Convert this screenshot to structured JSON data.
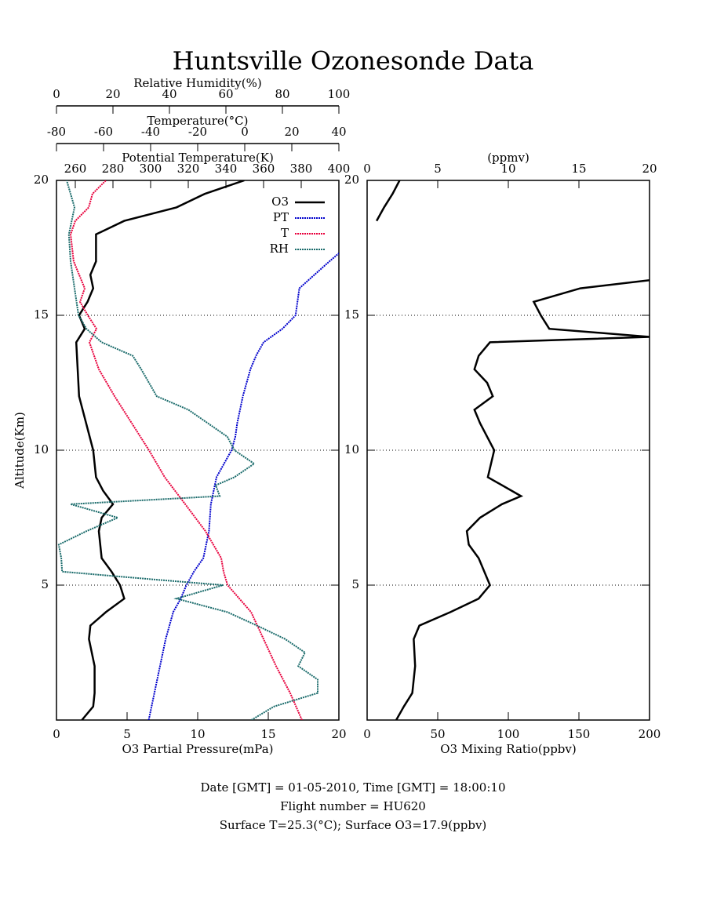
{
  "title": "Huntsville Ozonesonde Data",
  "footer": [
    "Date [GMT] = 01-05-2010,  Time [GMT] = 18:00:10",
    "Flight number = HU620",
    "Surface T=25.3(°C); Surface O3=17.9(ppbv)"
  ],
  "chart_data": [
    {
      "type": "line",
      "ylabel": "Altitude(Km)",
      "ylim": [
        0,
        20
      ],
      "yticks": [
        5,
        10,
        15,
        20
      ],
      "grid": true,
      "legend": "top-right",
      "axes": [
        {
          "label": "O3 Partial Pressure(mPa)",
          "lim": [
            0,
            20
          ],
          "ticks": [
            0,
            5,
            10,
            15,
            20
          ]
        },
        {
          "label": "Potential Temperature(K)",
          "lim": [
            250,
            400
          ],
          "ticks": [
            260,
            280,
            300,
            320,
            340,
            360,
            380,
            400
          ]
        },
        {
          "label": "Temperature(°C)",
          "lim": [
            -80,
            40
          ],
          "ticks": [
            -80,
            -60,
            -40,
            -20,
            0,
            20,
            40
          ]
        },
        {
          "label": "Relative Humidity(%)",
          "lim": [
            0,
            100
          ],
          "ticks": [
            0,
            20,
            40,
            60,
            80,
            100
          ]
        }
      ],
      "series": [
        {
          "name": "O3",
          "color": "#000000",
          "axis": 0,
          "altitude": [
            0,
            0.5,
            1,
            2,
            3,
            3.5,
            4,
            4.5,
            5,
            5.5,
            6,
            7,
            7.5,
            8,
            8.5,
            9,
            10,
            11,
            12,
            13,
            14,
            14.5,
            15,
            15.5,
            16,
            16.5,
            17,
            18,
            18.5,
            19,
            19.5,
            20
          ],
          "values": [
            1.8,
            2.6,
            2.7,
            2.7,
            2.3,
            2.4,
            3.5,
            4.8,
            4.5,
            3.9,
            3.2,
            3.0,
            3.2,
            4.0,
            3.3,
            2.8,
            2.6,
            2.1,
            1.6,
            1.5,
            1.4,
            2.0,
            1.6,
            2.2,
            2.6,
            2.4,
            2.8,
            2.8,
            4.8,
            8.5,
            10.5,
            13.3
          ]
        },
        {
          "name": "PT",
          "color": "#0000cc",
          "axis": 1,
          "altitude": [
            0,
            1,
            2,
            3,
            4,
            4.5,
            5,
            5.5,
            6,
            7,
            8,
            9,
            10,
            10.5,
            11,
            12,
            13,
            13.5,
            14,
            14.5,
            15,
            16,
            16.5,
            17,
            17.3
          ],
          "values": [
            299,
            302,
            305,
            308,
            312,
            316,
            319,
            323,
            328,
            331,
            332,
            335,
            343,
            345,
            346,
            349,
            353,
            356,
            360,
            370,
            377,
            379,
            387,
            395,
            400
          ]
        },
        {
          "name": "T",
          "color": "#e8003c",
          "axis": 2,
          "altitude": [
            0,
            1,
            2,
            3,
            4,
            5,
            5.5,
            6,
            7,
            8,
            9,
            10,
            11,
            12,
            13,
            14,
            14.5,
            15,
            15.5,
            16,
            17,
            18,
            18.5,
            19,
            19.5,
            20
          ],
          "values": [
            24.3,
            19.3,
            13.3,
            8,
            2.7,
            -7.3,
            -9,
            -10,
            -16.7,
            -25.3,
            -34,
            -40.7,
            -48,
            -55.3,
            -62,
            -66,
            -63,
            -66.7,
            -70,
            -68,
            -72.7,
            -74,
            -72,
            -66.3,
            -64.7,
            -59
          ]
        },
        {
          "name": "RH",
          "color": "#1a6b6b",
          "axis": 3,
          "altitude": [
            0,
            0.5,
            1,
            1.5,
            2,
            2.5,
            3,
            3.5,
            4,
            4.5,
            5,
            5.2,
            5.5,
            6,
            6.5,
            7,
            7.5,
            8,
            8.3,
            8.7,
            9,
            9.5,
            10,
            10.5,
            11,
            11.5,
            12,
            13,
            13.5,
            14,
            14.5,
            15,
            16,
            17,
            18,
            19,
            20
          ],
          "values": [
            69,
            77,
            92.5,
            92.5,
            85.6,
            88,
            81,
            71,
            60.5,
            42.5,
            59,
            35.5,
            2,
            1.7,
            0.8,
            10.6,
            21.7,
            5,
            57.8,
            56.4,
            63,
            70,
            63,
            60.5,
            53.6,
            46.7,
            35.5,
            30,
            27,
            16,
            10.6,
            7.8,
            6.4,
            5,
            4.4,
            6.4,
            3.6
          ]
        }
      ]
    },
    {
      "type": "line",
      "ylim": [
        0,
        20
      ],
      "yticks": [
        5,
        10,
        15,
        20
      ],
      "grid": true,
      "axes": [
        {
          "label": "O3 Mixing Ratio(ppbv)",
          "lim": [
            0,
            200
          ],
          "ticks": [
            0,
            50,
            100,
            150,
            200
          ]
        },
        {
          "label": "(ppmv)",
          "lim": [
            0,
            20
          ],
          "ticks": [
            0,
            5,
            10,
            15,
            20
          ]
        }
      ],
      "series": [
        {
          "name": "O3",
          "color": "#000000",
          "axis": 0,
          "altitude": [
            0,
            0.5,
            1,
            2,
            3,
            3.5,
            4,
            4.5,
            5,
            6,
            6.5,
            7,
            7.5,
            8,
            8.3,
            9,
            10,
            11,
            11.5,
            12,
            12.5,
            13,
            13.5,
            14,
            14.2,
            14.5,
            15,
            15.5,
            16,
            16.3,
            17,
            18.5,
            19,
            19.5,
            20
          ],
          "values": [
            20.6,
            26,
            32,
            34,
            33,
            37,
            59,
            79,
            87,
            79,
            72,
            70.6,
            80,
            95.5,
            109,
            85.5,
            90,
            80,
            76,
            89,
            85,
            76,
            79,
            87,
            200,
            129,
            123,
            118,
            151,
            200,
            null,
            6.7,
            12,
            18,
            23
          ]
        }
      ]
    }
  ]
}
